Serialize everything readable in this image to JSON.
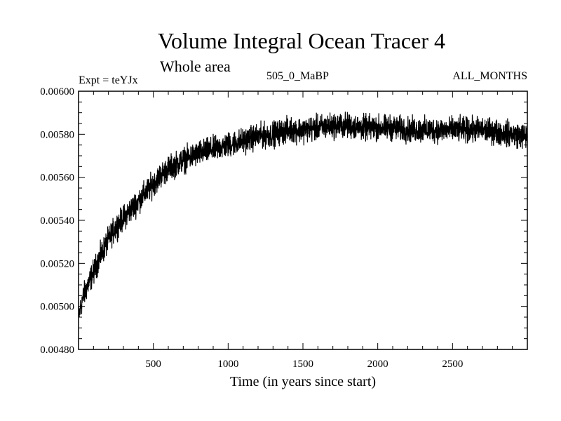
{
  "chart_data": {
    "type": "line",
    "title": "Volume Integral Ocean Tracer 4",
    "subtitle": "Whole area",
    "annotations": {
      "experiment": "Expt = teYJx",
      "period": "505_0_MaBP",
      "months": "ALL_MONTHS"
    },
    "xlabel": "Time (in years since start)",
    "ylabel": "",
    "xlim": [
      0,
      3000
    ],
    "ylim": [
      0.0048,
      0.006
    ],
    "x_ticks": [
      500,
      1000,
      1500,
      2000,
      2500
    ],
    "x_tick_labels": [
      "500",
      "1000",
      "1500",
      "2000",
      "2500"
    ],
    "y_ticks": [
      0.0048,
      0.005,
      0.0052,
      0.0054,
      0.0056,
      0.0058,
      0.006
    ],
    "y_tick_labels": [
      "0.00480",
      "0.00500",
      "0.00520",
      "0.00540",
      "0.00560",
      "0.00580",
      "0.00600"
    ],
    "grid": false,
    "series": [
      {
        "name": "Ocean Tracer 4 volume integral",
        "color": "#000000",
        "noise": 4e-05,
        "x": [
          0,
          25,
          50,
          100,
          150,
          200,
          250,
          300,
          350,
          400,
          450,
          500,
          550,
          600,
          700,
          800,
          900,
          1000,
          1100,
          1200,
          1300,
          1400,
          1500,
          1600,
          1700,
          1800,
          1900,
          2000,
          2100,
          2200,
          2300,
          2400,
          2500,
          2600,
          2700,
          2800,
          2900,
          3000
        ],
        "values": [
          0.00495,
          0.00503,
          0.00508,
          0.00516,
          0.00524,
          0.00531,
          0.00537,
          0.00541,
          0.00545,
          0.00549,
          0.00553,
          0.00557,
          0.00561,
          0.00564,
          0.00568,
          0.00571,
          0.00573,
          0.00575,
          0.00577,
          0.00579,
          0.0058,
          0.00582,
          0.00582,
          0.00583,
          0.00584,
          0.00584,
          0.00583,
          0.00583,
          0.00583,
          0.00582,
          0.00582,
          0.00582,
          0.00582,
          0.00582,
          0.00582,
          0.00581,
          0.0058,
          0.00579
        ]
      }
    ]
  }
}
